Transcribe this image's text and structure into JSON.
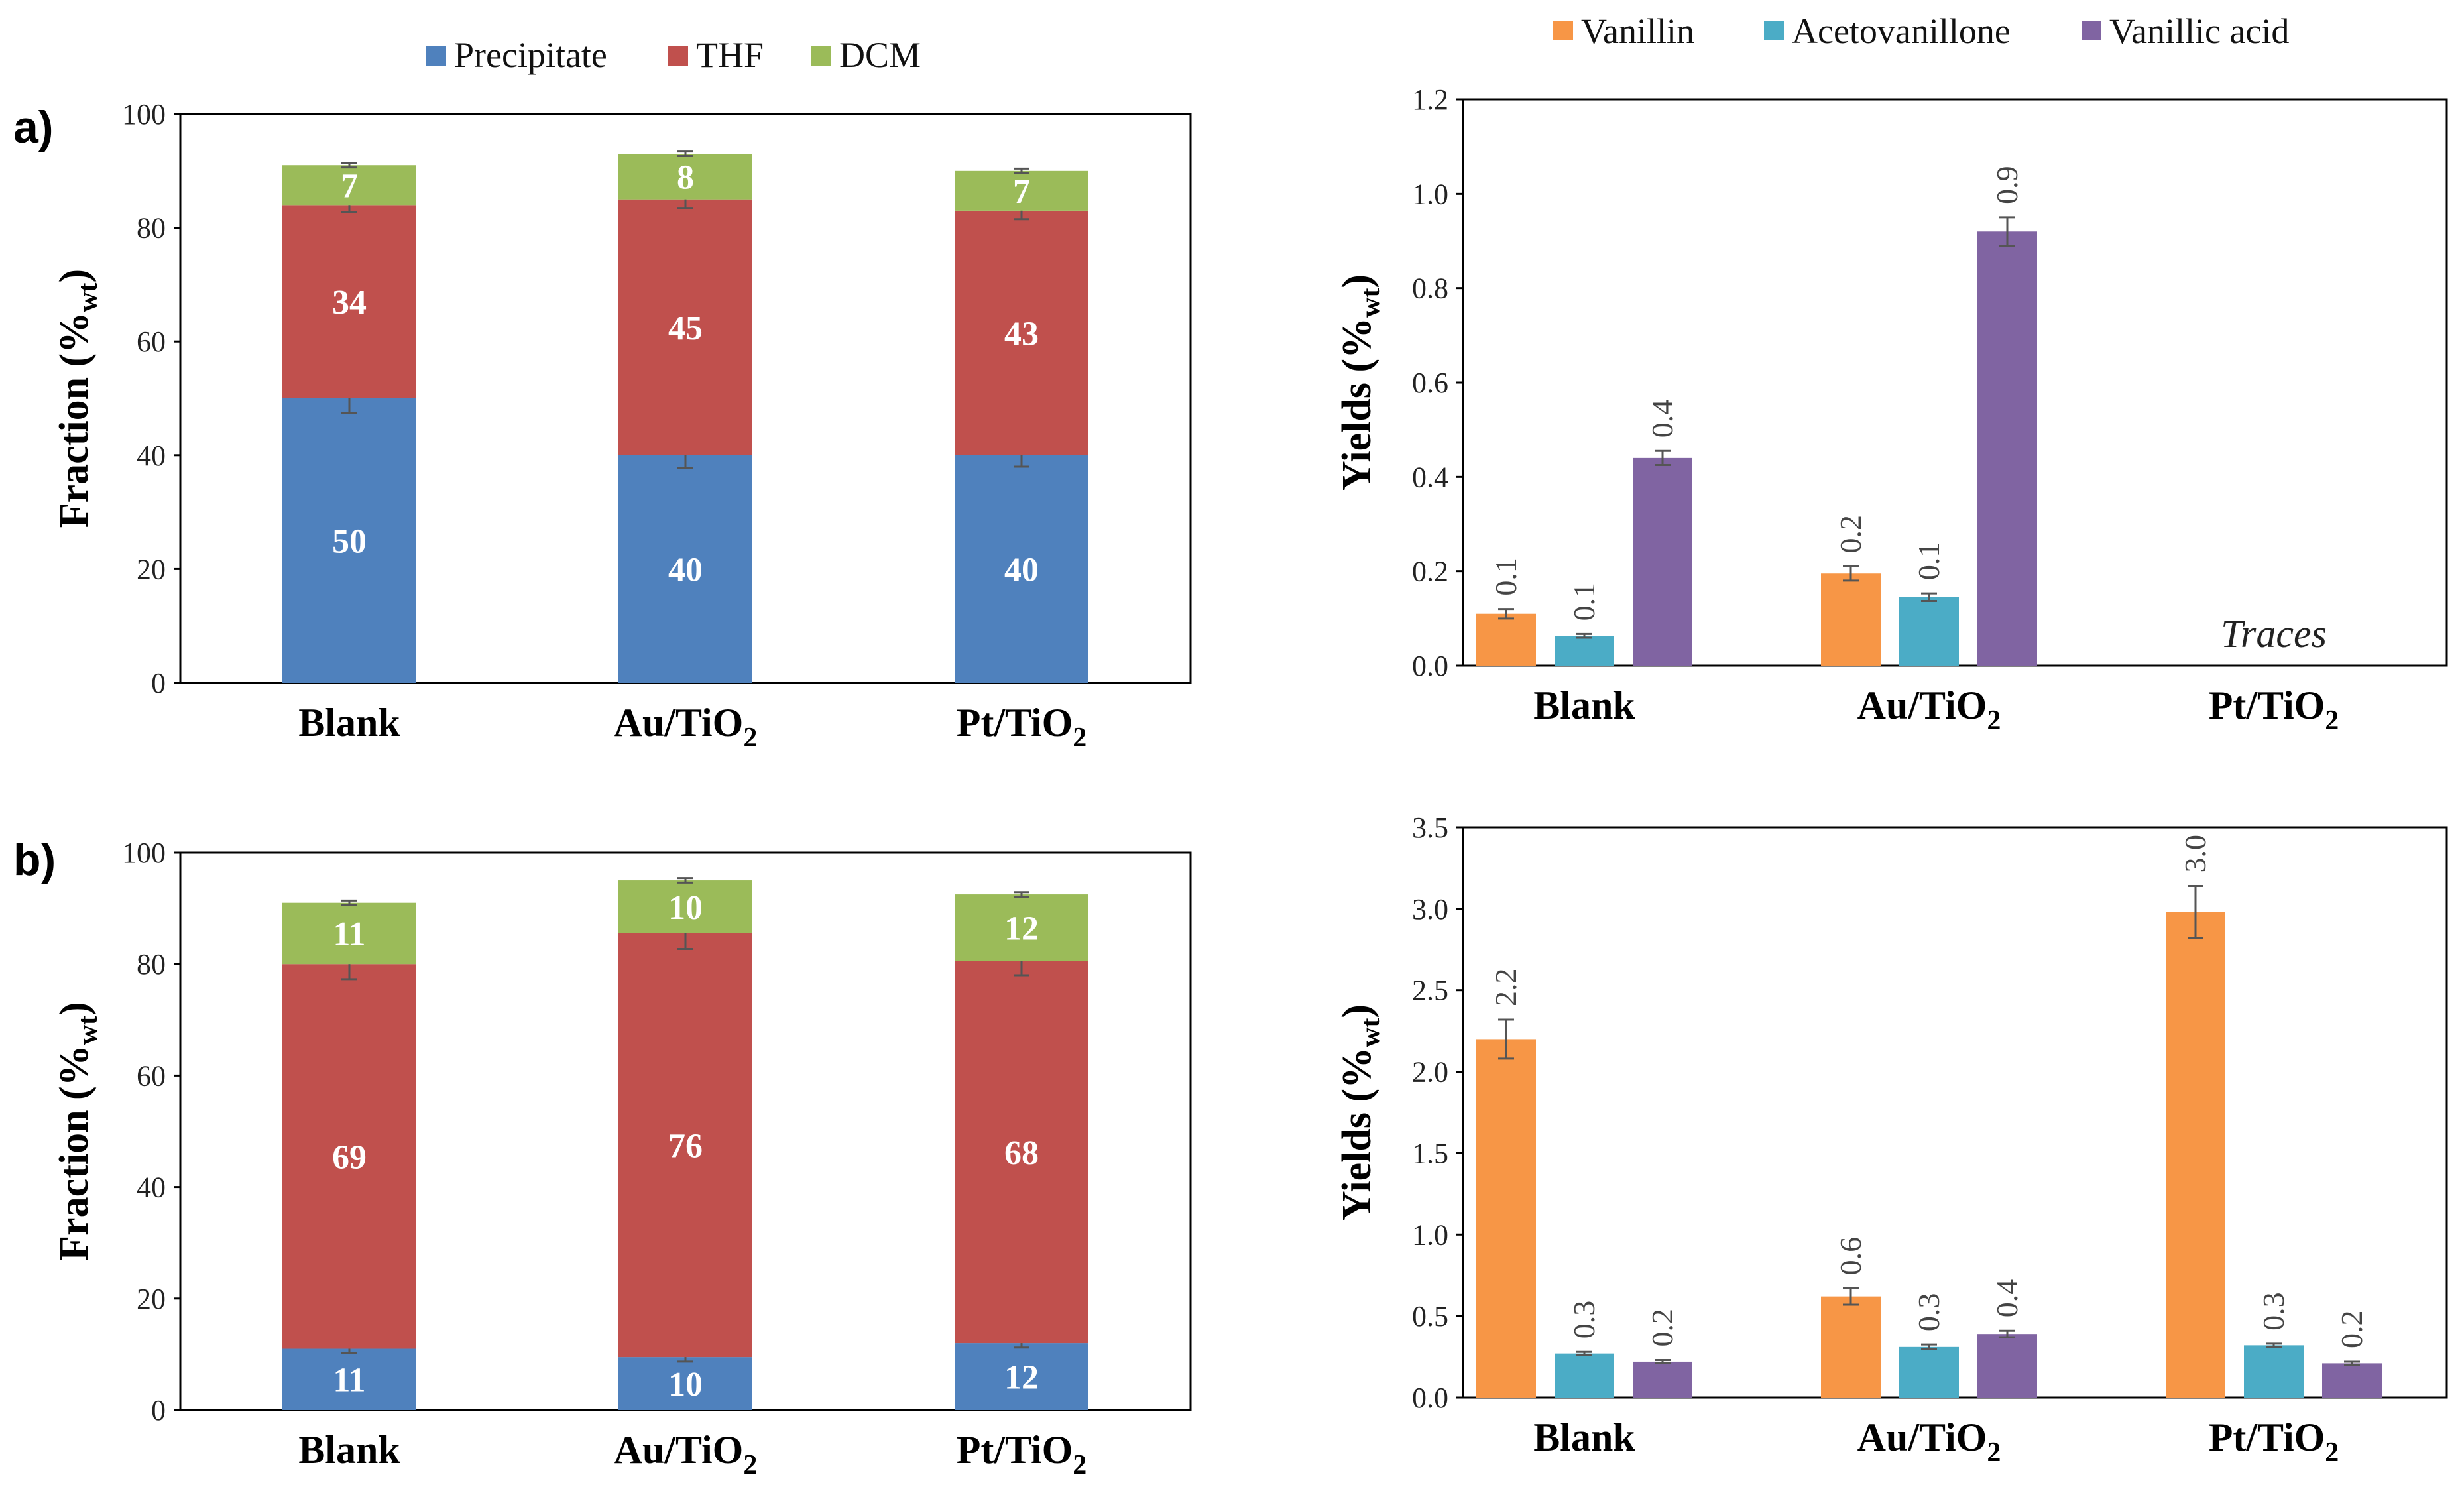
{
  "panel_tags": [
    "a)",
    "b)"
  ],
  "chart_data": [
    {
      "id": "a-left",
      "type": "bar",
      "stacked": true,
      "categories": [
        "Blank",
        "Au/TiO",
        "Pt/TiO"
      ],
      "category_subscript": [
        "",
        "2",
        "2"
      ],
      "series": [
        {
          "name": "Precipitate",
          "color": "#4F81BD",
          "values": [
            50,
            40,
            40
          ],
          "labels": [
            "50",
            "40",
            "40"
          ],
          "errors": [
            2.5,
            2.2,
            2.0
          ]
        },
        {
          "name": "THF",
          "color": "#C0504D",
          "values": [
            34,
            45,
            43
          ],
          "labels": [
            "34",
            "45",
            "43"
          ],
          "errors": [
            1.2,
            1.5,
            1.5
          ]
        },
        {
          "name": "DCM",
          "color": "#9BBB59",
          "values": [
            7,
            8,
            7
          ],
          "labels": [
            "7",
            "8",
            "7"
          ],
          "errors": [
            0.4,
            0.4,
            0.4
          ]
        }
      ],
      "ylabel": "Fraction (%",
      "ylabel_subscript": "wt",
      "ylabel_suffix": ")",
      "ylim": [
        0,
        100
      ],
      "yticks": [
        "0",
        "20",
        "40",
        "60",
        "80",
        "100"
      ],
      "legend": "top"
    },
    {
      "id": "a-right",
      "type": "bar",
      "stacked": false,
      "categories": [
        "Blank",
        "Au/TiO",
        "Pt/TiO"
      ],
      "category_subscript": [
        "",
        "2",
        "2"
      ],
      "series": [
        {
          "name": "Vanillin",
          "color": "#F79646",
          "values": [
            0.11,
            0.195,
            null
          ],
          "labels": [
            "0.1",
            "0.2",
            ""
          ],
          "errors": [
            0.01,
            0.015,
            0
          ]
        },
        {
          "name": "Acetovanillone",
          "color": "#4BACC6",
          "values": [
            0.063,
            0.145,
            null
          ],
          "labels": [
            "0.1",
            "0.1",
            ""
          ],
          "errors": [
            0.004,
            0.008,
            0
          ]
        },
        {
          "name": "Vanillic acid",
          "color": "#8064A2",
          "values": [
            0.44,
            0.92,
            null
          ],
          "labels": [
            "0.4",
            "0.9",
            ""
          ],
          "errors": [
            0.015,
            0.03,
            0
          ]
        }
      ],
      "ylabel": "Yields (%",
      "ylabel_subscript": "wt",
      "ylabel_suffix": ")",
      "ylim": [
        0,
        1.2
      ],
      "yticks": [
        "0.0",
        "0.2",
        "0.4",
        "0.6",
        "0.8",
        "1.0",
        "1.2"
      ],
      "annotation": "Traces",
      "legend": "top"
    },
    {
      "id": "b-left",
      "type": "bar",
      "stacked": true,
      "categories": [
        "Blank",
        "Au/TiO",
        "Pt/TiO"
      ],
      "category_subscript": [
        "",
        "2",
        "2"
      ],
      "series": [
        {
          "name": "Precipitate",
          "color": "#4F81BD",
          "values": [
            11,
            9.5,
            12
          ],
          "labels": [
            "11",
            "10",
            "12"
          ],
          "errors": [
            0.8,
            0.8,
            0.8
          ]
        },
        {
          "name": "THF",
          "color": "#C0504D",
          "values": [
            69,
            76,
            68.5
          ],
          "labels": [
            "69",
            "76",
            "68"
          ],
          "errors": [
            2.7,
            2.8,
            2.5
          ]
        },
        {
          "name": "DCM",
          "color": "#9BBB59",
          "values": [
            11,
            9.5,
            12
          ],
          "labels": [
            "11",
            "10",
            "12"
          ],
          "errors": [
            0.4,
            0.4,
            0.4
          ]
        }
      ],
      "ylabel": "Fraction (%",
      "ylabel_subscript": "wt",
      "ylabel_suffix": ")",
      "ylim": [
        0,
        100
      ],
      "yticks": [
        "0",
        "20",
        "40",
        "60",
        "80",
        "100"
      ]
    },
    {
      "id": "b-right",
      "type": "bar",
      "stacked": false,
      "categories": [
        "Blank",
        "Au/TiO",
        "Pt/TiO"
      ],
      "category_subscript": [
        "",
        "2",
        "2"
      ],
      "series": [
        {
          "name": "Vanillin",
          "color": "#F79646",
          "values": [
            2.2,
            0.62,
            2.98
          ],
          "labels": [
            "2.2",
            "0.6",
            "3.0"
          ],
          "errors": [
            0.12,
            0.05,
            0.16
          ]
        },
        {
          "name": "Acetovanillone",
          "color": "#4BACC6",
          "values": [
            0.27,
            0.31,
            0.32
          ],
          "labels": [
            "0.3",
            "0.3",
            "0.3"
          ],
          "errors": [
            0.01,
            0.015,
            0.01
          ]
        },
        {
          "name": "Vanillic acid",
          "color": "#8064A2",
          "values": [
            0.22,
            0.39,
            0.21
          ],
          "labels": [
            "0.2",
            "0.4",
            "0.2"
          ],
          "errors": [
            0.01,
            0.02,
            0.01
          ]
        }
      ],
      "ylabel": "Yields (%",
      "ylabel_subscript": "wt",
      "ylabel_suffix": ")",
      "ylim": [
        0,
        3.5
      ],
      "yticks": [
        "0.0",
        "0.5",
        "1.0",
        "1.5",
        "2.0",
        "2.5",
        "3.0",
        "3.5"
      ]
    }
  ]
}
